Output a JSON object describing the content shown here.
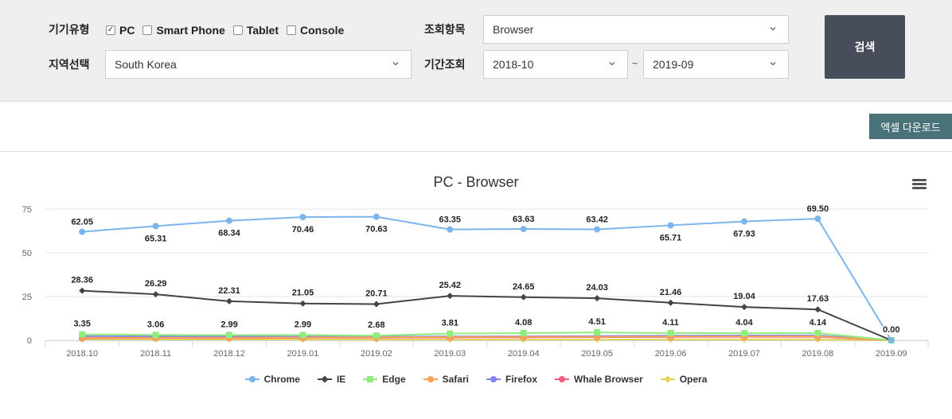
{
  "filters": {
    "device_label": "기기유형",
    "devices": [
      {
        "label": "PC",
        "checked": true
      },
      {
        "label": "Smart Phone",
        "checked": false
      },
      {
        "label": "Tablet",
        "checked": false
      },
      {
        "label": "Console",
        "checked": false
      }
    ],
    "region_label": "지역선택",
    "region_value": "South Korea",
    "item_label": "조회항목",
    "item_value": "Browser",
    "period_label": "기간조회",
    "period_from": "2018-10",
    "period_sep": "~",
    "period_to": "2019-09",
    "search_label": "검색"
  },
  "toolbar": {
    "excel_label": "엑셀 다운로드"
  },
  "colors": {
    "panel_bg": "#efefef",
    "search_button": "#474d5a",
    "excel_button": "#4a7279"
  },
  "chart_data": {
    "type": "line",
    "title": "PC - Browser",
    "xlabel": "",
    "ylabel": "",
    "categories": [
      "2018.10",
      "2018.11",
      "2018.12",
      "2019.01",
      "2019.02",
      "2019.03",
      "2019.04",
      "2019.05",
      "2019.06",
      "2019.07",
      "2019.08",
      "2019.09"
    ],
    "yticks": [
      0,
      25,
      50,
      75
    ],
    "ylim": [
      0,
      75
    ],
    "grid": true,
    "legend_position": "bottom",
    "series": [
      {
        "name": "Chrome",
        "color": "#7cb5ec",
        "marker": "circle",
        "labels": true,
        "label_pos": "alternate",
        "values": [
          62.05,
          65.31,
          68.34,
          70.46,
          70.63,
          63.35,
          63.63,
          63.42,
          65.71,
          67.93,
          69.5,
          0.0
        ]
      },
      {
        "name": "IE",
        "color": "#434348",
        "marker": "diamond",
        "labels": true,
        "label_pos": "above",
        "values": [
          28.36,
          26.29,
          22.31,
          21.05,
          20.71,
          25.42,
          24.65,
          24.03,
          21.46,
          19.04,
          17.63,
          0.0
        ]
      },
      {
        "name": "Edge",
        "color": "#90ed7d",
        "marker": "square",
        "labels": true,
        "label_pos": "above",
        "values": [
          3.35,
          3.06,
          2.99,
          2.99,
          2.68,
          3.81,
          4.08,
          4.51,
          4.11,
          4.04,
          4.14,
          0.0
        ]
      },
      {
        "name": "Safari",
        "color": "#f7a35c",
        "marker": "triangle",
        "labels": false,
        "values": [
          1.5,
          1.4,
          1.5,
          1.6,
          1.7,
          1.9,
          2.0,
          2.0,
          2.1,
          2.2,
          2.3,
          0.0
        ]
      },
      {
        "name": "Firefox",
        "color": "#8085e9",
        "marker": "triangle-down",
        "labels": false,
        "values": [
          2.4,
          2.2,
          2.3,
          2.1,
          2.0,
          2.2,
          2.3,
          2.4,
          2.6,
          2.7,
          2.8,
          0.0
        ]
      },
      {
        "name": "Whale Browser",
        "color": "#f15c80",
        "marker": "circle",
        "labels": false,
        "values": [
          1.2,
          1.3,
          1.3,
          1.4,
          1.5,
          1.6,
          1.7,
          1.8,
          1.9,
          2.0,
          2.0,
          0.0
        ]
      },
      {
        "name": "Opera",
        "color": "#e4d354",
        "marker": "diamond",
        "labels": false,
        "values": [
          0.5,
          0.5,
          0.5,
          0.4,
          0.4,
          0.4,
          0.4,
          0.4,
          0.4,
          0.4,
          0.4,
          0.0
        ]
      }
    ]
  }
}
